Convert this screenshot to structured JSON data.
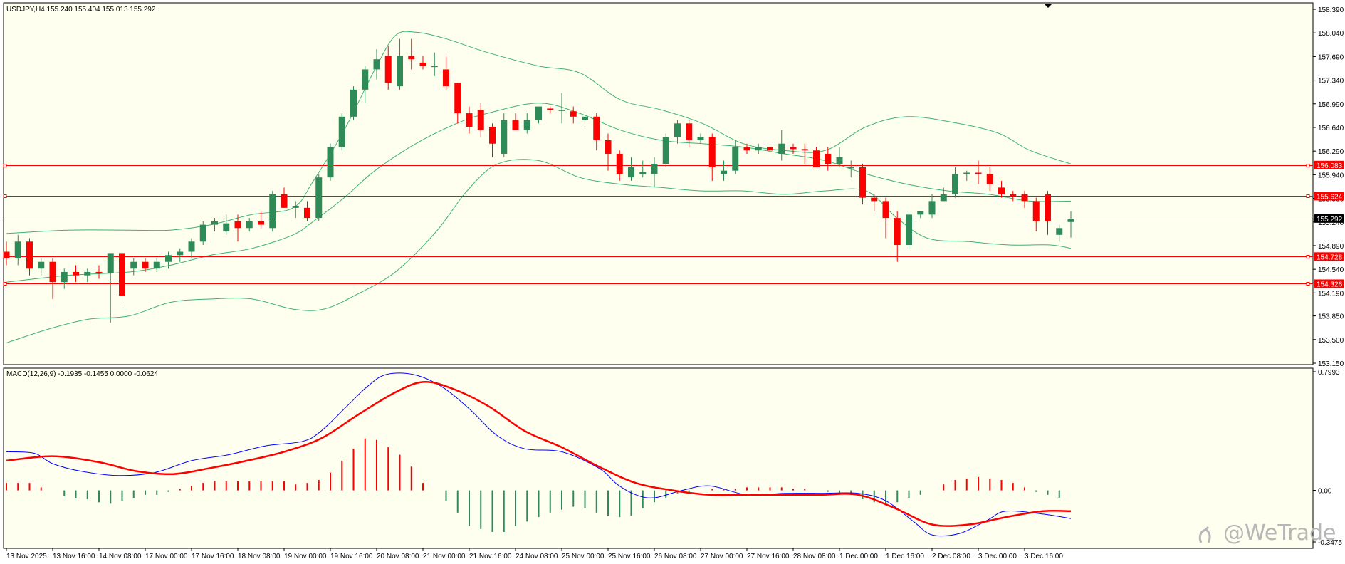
{
  "chart_data": {
    "type": "candlestick",
    "symbol_line": "USDJPY,H4  155.240 155.404 155.013 155.292",
    "price_axis": {
      "min": 153.15,
      "max": 158.39,
      "labels": [
        "158.390",
        "158.040",
        "157.690",
        "157.340",
        "156.990",
        "156.640",
        "156.290",
        "155.940",
        "155.590",
        "155.240",
        "154.890",
        "154.540",
        "154.190",
        "153.850",
        "153.500",
        "153.150"
      ],
      "values": [
        158.39,
        158.04,
        157.69,
        157.34,
        156.99,
        156.64,
        156.29,
        155.94,
        155.59,
        155.24,
        154.89,
        154.54,
        154.19,
        153.85,
        153.5,
        153.15
      ]
    },
    "time_axis": {
      "labels": [
        "13 Nov 2025",
        "13 Nov 16:00",
        "14 Nov 08:00",
        "17 Nov 00:00",
        "17 Nov 16:00",
        "18 Nov 08:00",
        "19 Nov 00:00",
        "19 Nov 16:00",
        "20 Nov 08:00",
        "21 Nov 00:00",
        "21 Nov 16:00",
        "24 Nov 08:00",
        "25 Nov 00:00",
        "25 Nov 16:00",
        "26 Nov 08:00",
        "27 Nov 00:00",
        "27 Nov 16:00",
        "28 Nov 08:00",
        "1 Dec 00:00",
        "1 Dec 16:00",
        "2 Dec 08:00",
        "3 Dec 00:00",
        "3 Dec 16:00"
      ],
      "bar_index": [
        0,
        4,
        8,
        12,
        16,
        20,
        24,
        28,
        32,
        36,
        40,
        44,
        48,
        52,
        56,
        60,
        64,
        68,
        72,
        76,
        80,
        84,
        88
      ]
    },
    "current_price": {
      "value": 155.292,
      "label": "155.292"
    },
    "levels": [
      {
        "value": 156.083,
        "label": "156.083"
      },
      {
        "value": 155.624,
        "label": "155.624"
      },
      {
        "value": 154.728,
        "label": "154.728"
      },
      {
        "value": 154.326,
        "label": "154.326"
      }
    ],
    "ohlc": [
      [
        154.8,
        154.95,
        154.6,
        154.7
      ],
      [
        154.7,
        155.05,
        154.6,
        154.95
      ],
      [
        154.95,
        155.0,
        154.45,
        154.55
      ],
      [
        154.55,
        154.7,
        154.45,
        154.65
      ],
      [
        154.65,
        154.7,
        154.1,
        154.35
      ],
      [
        154.35,
        154.55,
        154.25,
        154.5
      ],
      [
        154.5,
        154.6,
        154.35,
        154.45
      ],
      [
        154.45,
        154.55,
        154.35,
        154.5
      ],
      [
        154.5,
        154.6,
        154.4,
        154.48
      ],
      [
        154.48,
        154.75,
        153.75,
        154.78
      ],
      [
        154.78,
        154.8,
        154.0,
        154.15
      ],
      [
        154.55,
        154.7,
        154.45,
        154.65
      ],
      [
        154.65,
        154.7,
        154.5,
        154.55
      ],
      [
        154.55,
        154.7,
        154.5,
        154.65
      ],
      [
        154.65,
        154.8,
        154.55,
        154.75
      ],
      [
        154.75,
        154.85,
        154.65,
        154.8
      ],
      [
        154.8,
        155.0,
        154.7,
        154.95
      ],
      [
        154.95,
        155.25,
        154.9,
        155.2
      ],
      [
        155.2,
        155.3,
        155.1,
        155.25
      ],
      [
        155.1,
        155.35,
        155.05,
        155.22
      ],
      [
        155.25,
        155.35,
        154.95,
        155.15
      ],
      [
        155.15,
        155.3,
        155.1,
        155.25
      ],
      [
        155.25,
        155.4,
        155.15,
        155.2
      ],
      [
        155.15,
        155.7,
        155.1,
        155.65
      ],
      [
        155.65,
        155.75,
        155.45,
        155.45
      ],
      [
        155.45,
        155.55,
        155.3,
        155.48
      ],
      [
        155.45,
        155.55,
        155.25,
        155.3
      ],
      [
        155.3,
        155.95,
        155.25,
        155.9
      ],
      [
        155.9,
        156.4,
        155.85,
        156.35
      ],
      [
        156.35,
        156.85,
        156.3,
        156.8
      ],
      [
        156.8,
        157.25,
        156.75,
        157.2
      ],
      [
        157.2,
        157.55,
        157.0,
        157.5
      ],
      [
        157.5,
        157.8,
        157.35,
        157.65
      ],
      [
        157.7,
        157.85,
        157.2,
        157.3
      ],
      [
        157.25,
        157.95,
        157.2,
        157.7
      ],
      [
        157.7,
        157.95,
        157.5,
        157.65
      ],
      [
        157.6,
        157.7,
        157.5,
        157.55
      ],
      [
        157.55,
        157.75,
        157.4,
        157.55
      ],
      [
        157.5,
        157.7,
        157.2,
        157.25
      ],
      [
        157.3,
        157.3,
        156.7,
        156.85
      ],
      [
        156.85,
        156.95,
        156.55,
        156.65
      ],
      [
        156.9,
        157.0,
        156.5,
        156.6
      ],
      [
        156.65,
        156.7,
        156.2,
        156.4
      ],
      [
        156.25,
        156.85,
        156.2,
        156.75
      ],
      [
        156.75,
        156.85,
        156.6,
        156.6
      ],
      [
        156.6,
        156.85,
        156.55,
        156.75
      ],
      [
        156.75,
        156.95,
        156.7,
        156.95
      ],
      [
        156.92,
        156.95,
        156.85,
        156.9
      ],
      [
        156.9,
        157.15,
        156.7,
        156.9
      ],
      [
        156.88,
        156.95,
        156.7,
        156.8
      ],
      [
        156.75,
        156.85,
        156.65,
        156.8
      ],
      [
        156.8,
        156.85,
        156.3,
        156.45
      ],
      [
        156.45,
        156.55,
        156.0,
        156.25
      ],
      [
        156.25,
        156.3,
        155.85,
        155.95
      ],
      [
        155.9,
        156.2,
        155.85,
        156.05
      ],
      [
        155.95,
        156.15,
        155.9,
        155.98
      ],
      [
        155.95,
        156.2,
        155.75,
        156.1
      ],
      [
        156.1,
        156.55,
        156.05,
        156.5
      ],
      [
        156.5,
        156.75,
        156.4,
        156.7
      ],
      [
        156.7,
        156.75,
        156.35,
        156.45
      ],
      [
        156.45,
        156.55,
        156.4,
        156.5
      ],
      [
        156.5,
        156.55,
        155.85,
        156.05
      ],
      [
        155.95,
        156.15,
        155.85,
        156.0
      ],
      [
        156.0,
        156.45,
        155.95,
        156.35
      ],
      [
        156.35,
        156.4,
        156.25,
        156.3
      ],
      [
        156.3,
        156.4,
        156.25,
        156.35
      ],
      [
        156.35,
        156.4,
        156.25,
        156.3
      ],
      [
        156.25,
        156.6,
        156.15,
        156.4
      ],
      [
        156.35,
        156.4,
        156.25,
        156.32
      ],
      [
        156.32,
        156.4,
        156.1,
        156.3
      ],
      [
        156.3,
        156.35,
        156.05,
        156.05
      ],
      [
        156.25,
        156.35,
        156.0,
        156.1
      ],
      [
        156.1,
        156.35,
        156.05,
        156.2
      ],
      [
        156.05,
        156.15,
        155.9,
        156.05
      ],
      [
        156.05,
        156.1,
        155.5,
        155.6
      ],
      [
        155.6,
        155.65,
        155.4,
        155.55
      ],
      [
        155.55,
        155.6,
        155.0,
        155.3
      ],
      [
        155.3,
        155.4,
        154.65,
        154.9
      ],
      [
        154.9,
        155.4,
        154.85,
        155.35
      ],
      [
        155.35,
        155.4,
        155.3,
        155.4
      ],
      [
        155.35,
        155.65,
        155.3,
        155.55
      ],
      [
        155.55,
        155.75,
        155.55,
        155.65
      ],
      [
        155.65,
        156.05,
        155.6,
        155.95
      ],
      [
        155.95,
        156.0,
        155.85,
        155.97
      ],
      [
        155.97,
        156.15,
        155.8,
        155.95
      ],
      [
        155.95,
        156.05,
        155.7,
        155.8
      ],
      [
        155.75,
        155.85,
        155.6,
        155.65
      ],
      [
        155.65,
        155.7,
        155.55,
        155.62
      ],
      [
        155.65,
        155.7,
        155.45,
        155.55
      ],
      [
        155.55,
        155.6,
        155.1,
        155.25
      ],
      [
        155.65,
        155.7,
        155.05,
        155.25
      ],
      [
        155.05,
        155.2,
        154.95,
        155.15
      ],
      [
        155.24,
        155.4,
        155.01,
        155.29
      ]
    ],
    "bollinger": {
      "upper_pts": [
        [
          0,
          155.07
        ],
        [
          6,
          155.12
        ],
        [
          12,
          155.12
        ],
        [
          16,
          155.12
        ],
        [
          20,
          155.2
        ],
        [
          24,
          155.35
        ],
        [
          28,
          155.45
        ],
        [
          30,
          155.85
        ],
        [
          33,
          156.6
        ],
        [
          36,
          157.5
        ],
        [
          38,
          158.0
        ],
        [
          40,
          158.05
        ],
        [
          43,
          157.95
        ],
        [
          47,
          157.75
        ],
        [
          52,
          157.55
        ],
        [
          56,
          157.45
        ],
        [
          60,
          157.05
        ],
        [
          64,
          156.9
        ],
        [
          68,
          156.7
        ],
        [
          72,
          156.4
        ],
        [
          76,
          156.3
        ],
        [
          80,
          156.3
        ],
        [
          84,
          156.65
        ],
        [
          88,
          156.8
        ],
        [
          93,
          156.7
        ],
        [
          97,
          156.55
        ],
        [
          100,
          156.3
        ],
        [
          104,
          156.1
        ]
      ],
      "middle_pts": [
        [
          0,
          154.35
        ],
        [
          6,
          154.45
        ],
        [
          12,
          154.5
        ],
        [
          16,
          154.6
        ],
        [
          20,
          154.75
        ],
        [
          24,
          154.85
        ],
        [
          28,
          155.05
        ],
        [
          30,
          155.25
        ],
        [
          33,
          155.6
        ],
        [
          36,
          156.0
        ],
        [
          40,
          156.4
        ],
        [
          44,
          156.7
        ],
        [
          47,
          156.85
        ],
        [
          52,
          157.0
        ],
        [
          56,
          156.85
        ],
        [
          60,
          156.6
        ],
        [
          64,
          156.45
        ],
        [
          68,
          156.4
        ],
        [
          72,
          156.35
        ],
        [
          76,
          156.25
        ],
        [
          80,
          156.15
        ],
        [
          84,
          155.95
        ],
        [
          88,
          155.8
        ],
        [
          92,
          155.7
        ],
        [
          96,
          155.65
        ],
        [
          100,
          155.55
        ],
        [
          104,
          155.55
        ]
      ],
      "lower_pts": [
        [
          0,
          153.45
        ],
        [
          4,
          153.65
        ],
        [
          8,
          153.8
        ],
        [
          12,
          153.85
        ],
        [
          16,
          154.05
        ],
        [
          20,
          154.1
        ],
        [
          24,
          154.1
        ],
        [
          28,
          153.95
        ],
        [
          31,
          153.95
        ],
        [
          34,
          154.15
        ],
        [
          38,
          154.5
        ],
        [
          42,
          155.1
        ],
        [
          45,
          155.7
        ],
        [
          48,
          156.1
        ],
        [
          52,
          156.15
        ],
        [
          56,
          155.9
        ],
        [
          60,
          155.8
        ],
        [
          64,
          155.75
        ],
        [
          68,
          155.7
        ],
        [
          72,
          155.7
        ],
        [
          76,
          155.65
        ],
        [
          80,
          155.7
        ],
        [
          84,
          155.7
        ],
        [
          87,
          155.3
        ],
        [
          90,
          155.0
        ],
        [
          94,
          154.95
        ],
        [
          98,
          154.9
        ],
        [
          102,
          154.9
        ],
        [
          104,
          154.85
        ]
      ]
    },
    "macd": {
      "title": "MACD(12,26,9) -0.1935 -0.1455 0.0000 -0.0624",
      "min": -0.3475,
      "max": 0.7993,
      "labels": [
        "0.7993",
        "0.00",
        "-0.3475"
      ],
      "values": [
        0.7993,
        0.0,
        -0.3475
      ],
      "histogram": [
        0.05,
        0.05,
        0.05,
        0.02,
        0.0,
        -0.04,
        -0.05,
        -0.06,
        -0.08,
        -0.09,
        -0.07,
        -0.05,
        -0.03,
        -0.03,
        -0.01,
        0.01,
        0.03,
        0.05,
        0.06,
        0.06,
        0.06,
        0.06,
        0.06,
        0.06,
        0.06,
        0.04,
        0.05,
        0.07,
        0.12,
        0.2,
        0.28,
        0.35,
        0.34,
        0.29,
        0.24,
        0.16,
        0.05,
        0.0,
        -0.07,
        -0.15,
        -0.24,
        -0.26,
        -0.28,
        -0.28,
        -0.24,
        -0.21,
        -0.18,
        -0.15,
        -0.13,
        -0.11,
        -0.12,
        -0.15,
        -0.17,
        -0.18,
        -0.17,
        -0.12,
        -0.08,
        -0.05,
        -0.02,
        -0.01,
        0.0,
        0.01,
        0.01,
        0.01,
        0.02,
        0.02,
        0.02,
        0.02,
        0.01,
        0.01,
        0.0,
        -0.01,
        -0.02,
        -0.03,
        -0.06,
        -0.08,
        -0.09,
        -0.08,
        -0.05,
        -0.03,
        0.0,
        0.04,
        0.07,
        0.08,
        0.09,
        0.08,
        0.07,
        0.05,
        0.02,
        -0.01,
        -0.03,
        -0.05
      ],
      "macd_pts": [
        [
          0,
          0.26
        ],
        [
          3,
          0.25
        ],
        [
          5,
          0.18
        ],
        [
          8,
          0.13
        ],
        [
          12,
          0.1
        ],
        [
          16,
          0.12
        ],
        [
          20,
          0.2
        ],
        [
          24,
          0.24
        ],
        [
          28,
          0.3
        ],
        [
          32,
          0.33
        ],
        [
          34,
          0.4
        ],
        [
          37,
          0.58
        ],
        [
          39,
          0.7
        ],
        [
          41,
          0.78
        ],
        [
          44,
          0.78
        ],
        [
          47,
          0.7
        ],
        [
          50,
          0.55
        ],
        [
          53,
          0.37
        ],
        [
          56,
          0.28
        ],
        [
          60,
          0.26
        ],
        [
          64,
          0.15
        ],
        [
          66,
          0.04
        ],
        [
          68,
          -0.03
        ],
        [
          70,
          -0.05
        ],
        [
          73,
          0.0
        ],
        [
          76,
          0.03
        ],
        [
          80,
          -0.03
        ],
        [
          84,
          -0.02
        ],
        [
          88,
          -0.02
        ],
        [
          92,
          -0.02
        ],
        [
          95,
          -0.07
        ],
        [
          98,
          -0.21
        ],
        [
          100,
          -0.3
        ],
        [
          103,
          -0.29
        ],
        [
          106,
          -0.2
        ],
        [
          108,
          -0.14
        ],
        [
          112,
          -0.16
        ],
        [
          115,
          -0.19
        ]
      ],
      "signal_pts": [
        [
          0,
          0.2
        ],
        [
          5,
          0.23
        ],
        [
          10,
          0.19
        ],
        [
          14,
          0.13
        ],
        [
          18,
          0.11
        ],
        [
          22,
          0.15
        ],
        [
          26,
          0.2
        ],
        [
          30,
          0.26
        ],
        [
          34,
          0.35
        ],
        [
          38,
          0.51
        ],
        [
          42,
          0.66
        ],
        [
          45,
          0.73
        ],
        [
          48,
          0.69
        ],
        [
          52,
          0.57
        ],
        [
          56,
          0.4
        ],
        [
          60,
          0.29
        ],
        [
          64,
          0.16
        ],
        [
          68,
          0.05
        ],
        [
          72,
          0.0
        ],
        [
          76,
          -0.03
        ],
        [
          80,
          -0.03
        ],
        [
          84,
          -0.03
        ],
        [
          88,
          -0.03
        ],
        [
          92,
          -0.03
        ],
        [
          96,
          -0.12
        ],
        [
          100,
          -0.23
        ],
        [
          104,
          -0.23
        ],
        [
          108,
          -0.18
        ],
        [
          112,
          -0.14
        ],
        [
          115,
          -0.14
        ]
      ]
    },
    "colors": {
      "background": "#fffff0",
      "bull": "#2e8b57",
      "bear": "#ff0000",
      "bollinger": "#3cb371",
      "level": "#ff0000",
      "current": "#000000",
      "macd_line": "#0000ff",
      "signal_line": "#ff0000"
    }
  },
  "watermark": "@WeTrade"
}
